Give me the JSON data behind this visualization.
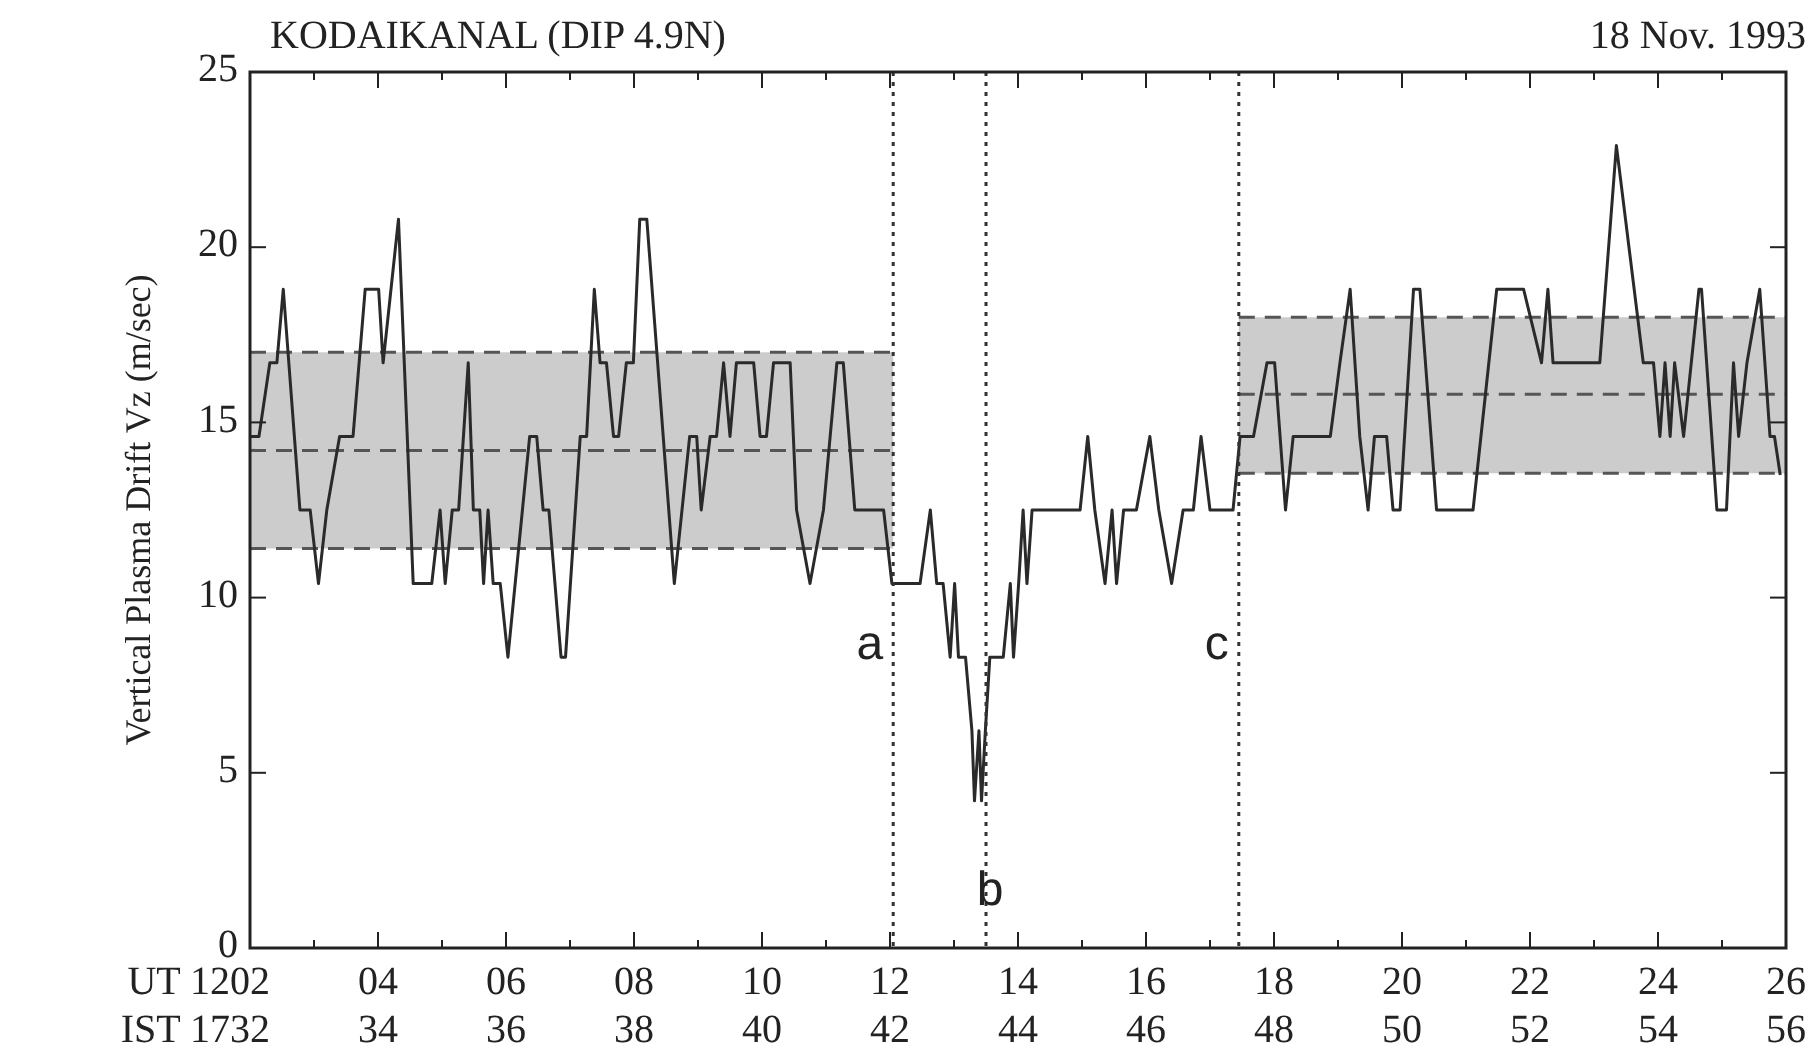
{
  "chart_data": {
    "type": "line",
    "title": "KODAIKANAL (DIP 4.9N)",
    "subtitle": "18 Nov. 1993",
    "ylabel": "Vertical Plasma Drift Vz (m/sec)",
    "xlabel": "UT 12",
    "x2label": "IST 17",
    "xlim": [
      2,
      26
    ],
    "xticks": [
      {
        "value": 2,
        "label": "02"
      },
      {
        "value": 3,
        "label": null
      },
      {
        "value": 4,
        "label": "04"
      },
      {
        "value": 5,
        "label": null
      },
      {
        "value": 6,
        "label": "06"
      },
      {
        "value": 7,
        "label": null
      },
      {
        "value": 8,
        "label": "08"
      },
      {
        "value": 9,
        "label": null
      },
      10,
      {
        "value": 11,
        "label": null
      },
      12,
      {
        "value": 13,
        "label": null
      },
      14,
      {
        "value": 15,
        "label": null
      },
      16,
      {
        "value": 17,
        "label": null
      },
      18,
      {
        "value": 19,
        "label": null
      },
      20,
      {
        "value": 21,
        "label": null
      },
      22,
      {
        "value": 23,
        "label": null
      },
      24,
      {
        "value": 25,
        "label": null
      },
      26
    ],
    "x2lim": [
      32,
      56
    ],
    "x2ticks": [
      32,
      34,
      36,
      38,
      40,
      42,
      44,
      46,
      48,
      50,
      52,
      54,
      56
    ],
    "ylim": [
      0,
      25
    ],
    "yticks": [
      0,
      5,
      10,
      15,
      20,
      25
    ],
    "grid": false,
    "marker": "none",
    "series": [
      {
        "color": "#555555",
        "line_style": "dashed",
        "x": [
          2,
          12.05
        ],
        "values": [
          14.2,
          14.2
        ],
        "lower": [
          11.4,
          11.4
        ],
        "upper": [
          17,
          17
        ]
      },
      {
        "color": "#555555",
        "line_style": "dashed",
        "x": [
          2,
          12.05
        ],
        "values": [
          11.4,
          11.4
        ]
      },
      {
        "color": "#555555",
        "line_style": "dashed",
        "x": [
          2,
          12.05
        ],
        "values": [
          17,
          17
        ]
      },
      {
        "color": "#555555",
        "line_style": "dashed",
        "x": [
          17.45,
          26
        ],
        "values": [
          15.8,
          15.8
        ],
        "lower": [
          13.55,
          13.55
        ],
        "upper": [
          18,
          18
        ]
      },
      {
        "color": "#555555",
        "line_style": "dashed",
        "x": [
          17.45,
          26
        ],
        "values": [
          13.55,
          13.55
        ]
      },
      {
        "color": "#555555",
        "line_style": "dashed",
        "x": [
          17.45,
          26
        ],
        "values": [
          18,
          18
        ]
      },
      {
        "color": "#2a2a2a",
        "line_style": "solid",
        "x": [
          2,
          2.14,
          2.31,
          2.42,
          2.52,
          2.78,
          2.94,
          3.07,
          3.2,
          3.4,
          3.61,
          3.8,
          4.01,
          4.08,
          4.32,
          4.55,
          4.84,
          4.97,
          5.05,
          5.16,
          5.26,
          5.41,
          5.49,
          5.59,
          5.65,
          5.72,
          5.8,
          5.91,
          6.03,
          6.37,
          6.48,
          6.58,
          6.67,
          6.86,
          6.93,
          7.16,
          7.26,
          7.38,
          7.47,
          7.57,
          7.68,
          7.76,
          7.88,
          7.99,
          8.09,
          8.2,
          8.63,
          8.87,
          8.98,
          9.05,
          9.19,
          9.29,
          9.4,
          9.5,
          9.6,
          9.76,
          9.87,
          9.97,
          10.07,
          10.18,
          10.44,
          10.54,
          10.75,
          10.96,
          11.17,
          11.27,
          11.45,
          11.9,
          12.03,
          12.47,
          12.63,
          12.73,
          12.83,
          12.94,
          13.01,
          13.07,
          13.18,
          13.28,
          13.32,
          13.39,
          13.43,
          13.49,
          13.56,
          13.77,
          13.88,
          13.93,
          14.01,
          14.08,
          14.14,
          14.22,
          14.97,
          15.09,
          15.2,
          15.36,
          15.47,
          15.54,
          15.65,
          15.85,
          16.06,
          16.2,
          16.4,
          16.58,
          16.74,
          16.86,
          17,
          17.36,
          17.47,
          17.68,
          17.89,
          18.01,
          18.18,
          18.3,
          18.88,
          19.03,
          19.19,
          19.34,
          19.47,
          19.57,
          19.76,
          19.86,
          19.97,
          20.18,
          20.28,
          20.54,
          21.11,
          21.48,
          21.9,
          22.18,
          22.28,
          22.36,
          23.09,
          23.35,
          23.77,
          23.93,
          24.03,
          24.11,
          24.19,
          24.26,
          24.4,
          24.64,
          24.68,
          24.92,
          25.07,
          25.18,
          25.26,
          25.39,
          25.59,
          25.75,
          25.82,
          25.91
        ],
        "values": [
          14.6,
          14.6,
          16.7,
          16.7,
          18.8,
          12.5,
          12.5,
          10.4,
          12.5,
          14.6,
          14.6,
          18.8,
          18.8,
          16.7,
          20.8,
          10.4,
          10.4,
          12.5,
          10.4,
          12.5,
          12.5,
          16.7,
          12.5,
          12.5,
          10.4,
          12.5,
          10.4,
          10.4,
          8.3,
          14.6,
          14.6,
          12.5,
          12.5,
          8.3,
          8.3,
          14.6,
          14.6,
          18.8,
          16.7,
          16.7,
          14.6,
          14.6,
          16.7,
          16.7,
          20.8,
          20.8,
          10.4,
          14.6,
          14.6,
          12.5,
          14.6,
          14.6,
          16.7,
          14.6,
          16.7,
          16.7,
          16.7,
          14.6,
          14.6,
          16.7,
          16.7,
          12.5,
          10.4,
          12.5,
          16.7,
          16.7,
          12.5,
          12.5,
          10.4,
          10.4,
          12.5,
          10.4,
          10.4,
          8.3,
          10.4,
          8.3,
          8.3,
          6.2,
          4.2,
          6.2,
          4.2,
          6.2,
          8.3,
          8.3,
          10.4,
          8.3,
          10.4,
          12.5,
          10.4,
          12.5,
          12.5,
          14.6,
          12.5,
          10.4,
          12.5,
          10.4,
          12.5,
          12.5,
          14.6,
          12.5,
          10.4,
          12.5,
          12.5,
          14.6,
          12.5,
          12.5,
          14.6,
          14.6,
          16.7,
          16.7,
          12.5,
          14.6,
          14.6,
          16.7,
          18.8,
          14.6,
          12.5,
          14.6,
          14.6,
          12.5,
          12.5,
          18.8,
          18.8,
          12.5,
          12.5,
          18.8,
          18.8,
          16.7,
          18.8,
          16.7,
          16.7,
          22.9,
          16.7,
          16.7,
          14.6,
          16.7,
          14.6,
          16.7,
          14.6,
          18.8,
          18.8,
          12.5,
          12.5,
          16.7,
          14.6,
          16.7,
          18.8,
          14.6,
          14.6,
          13.5
        ]
      }
    ],
    "ref_lines": [
      {
        "axis": "x",
        "value": 12.05,
        "label": "a",
        "line_style": "dotted"
      },
      {
        "axis": "x",
        "value": 13.5,
        "label": "b",
        "line_style": "dotted"
      },
      {
        "axis": "x",
        "value": 17.45,
        "label": "c",
        "line_style": "dotted"
      }
    ]
  }
}
